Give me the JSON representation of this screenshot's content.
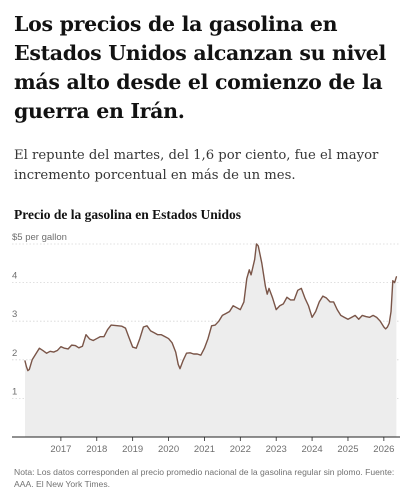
{
  "article": {
    "headline": "Los precios de la gasolina en Estados Unidos alcanzan su nivel más alto desde el comienzo de la guerra en Irán.",
    "dek": "El repunte del martes, del 1,6 por ciento, fue el mayor incremento porcentual en más de un mes.",
    "note": "Nota: Los datos corresponden al precio promedio nacional de la gasolina regular sin plomo. Fuente: AAA. El New York Times."
  },
  "colors": {
    "line": "#7a5548",
    "area": "#ededed",
    "grid": "#d6d6d6",
    "baseline": "#222222",
    "tick_text": "#6f6f6f"
  },
  "chart_data": {
    "type": "area",
    "title": "Precio de la gasolina en Estados Unidos",
    "y_unit_label": "$5 per gallon",
    "xlim": [
      2016.0,
      2026.45
    ],
    "ylim": [
      0,
      5
    ],
    "y_ticks": [
      1,
      2,
      3,
      4,
      5
    ],
    "y_tick_labels": [
      "1",
      "2",
      "3",
      "4",
      "$5 per gallon"
    ],
    "x_ticks": [
      2017,
      2018,
      2019,
      2020,
      2021,
      2022,
      2023,
      2024,
      2025,
      2026
    ],
    "x_tick_labels": [
      "2017",
      "2018",
      "2019",
      "2020",
      "2021",
      "2022",
      "2023",
      "2024",
      "2025",
      "2026"
    ],
    "grid": true,
    "series": [
      {
        "x": [
          2016.0,
          2016.04,
          2016.08,
          2016.12,
          2016.2,
          2016.3,
          2016.4,
          2016.5,
          2016.6,
          2016.7,
          2016.8,
          2016.9,
          2017.0,
          2017.1,
          2017.2,
          2017.3,
          2017.4,
          2017.5,
          2017.6,
          2017.65,
          2017.7,
          2017.8,
          2017.9,
          2018.0,
          2018.1,
          2018.2,
          2018.3,
          2018.4,
          2018.5,
          2018.6,
          2018.7,
          2018.8,
          2018.9,
          2019.0,
          2019.1,
          2019.2,
          2019.3,
          2019.4,
          2019.5,
          2019.6,
          2019.7,
          2019.8,
          2019.9,
          2020.0,
          2020.1,
          2020.2,
          2020.27,
          2020.32,
          2020.4,
          2020.5,
          2020.6,
          2020.7,
          2020.8,
          2020.9,
          2021.0,
          2021.1,
          2021.2,
          2021.3,
          2021.4,
          2021.5,
          2021.6,
          2021.7,
          2021.8,
          2021.9,
          2022.0,
          2022.1,
          2022.18,
          2022.25,
          2022.3,
          2022.4,
          2022.45,
          2022.5,
          2022.6,
          2022.7,
          2022.75,
          2022.8,
          2022.9,
          2023.0,
          2023.1,
          2023.2,
          2023.3,
          2023.4,
          2023.5,
          2023.6,
          2023.7,
          2023.8,
          2023.9,
          2024.0,
          2024.1,
          2024.2,
          2024.3,
          2024.4,
          2024.5,
          2024.6,
          2024.7,
          2024.8,
          2024.9,
          2025.0,
          2025.1,
          2025.2,
          2025.3,
          2025.4,
          2025.5,
          2025.6,
          2025.7,
          2025.8,
          2025.9,
          2026.0,
          2026.05,
          2026.1,
          2026.15,
          2026.2,
          2026.25,
          2026.3,
          2026.35
        ],
        "y": [
          1.97,
          1.82,
          1.72,
          1.75,
          2.0,
          2.15,
          2.3,
          2.24,
          2.17,
          2.22,
          2.2,
          2.24,
          2.34,
          2.3,
          2.28,
          2.38,
          2.37,
          2.31,
          2.35,
          2.5,
          2.65,
          2.54,
          2.5,
          2.55,
          2.6,
          2.6,
          2.78,
          2.9,
          2.89,
          2.88,
          2.87,
          2.82,
          2.57,
          2.33,
          2.3,
          2.55,
          2.85,
          2.88,
          2.75,
          2.7,
          2.65,
          2.65,
          2.6,
          2.55,
          2.44,
          2.2,
          1.88,
          1.77,
          1.97,
          2.17,
          2.18,
          2.15,
          2.15,
          2.12,
          2.3,
          2.55,
          2.88,
          2.9,
          3.0,
          3.15,
          3.2,
          3.25,
          3.4,
          3.35,
          3.3,
          3.5,
          4.1,
          4.33,
          4.2,
          4.6,
          5.0,
          4.95,
          4.5,
          3.9,
          3.7,
          3.85,
          3.6,
          3.3,
          3.4,
          3.45,
          3.62,
          3.55,
          3.55,
          3.8,
          3.85,
          3.6,
          3.4,
          3.1,
          3.25,
          3.5,
          3.65,
          3.6,
          3.5,
          3.5,
          3.3,
          3.15,
          3.1,
          3.05,
          3.1,
          3.15,
          3.05,
          3.15,
          3.12,
          3.1,
          3.15,
          3.1,
          3.0,
          2.85,
          2.8,
          2.85,
          2.95,
          3.25,
          4.05,
          4.0,
          4.15
        ]
      }
    ],
    "annotations": []
  }
}
